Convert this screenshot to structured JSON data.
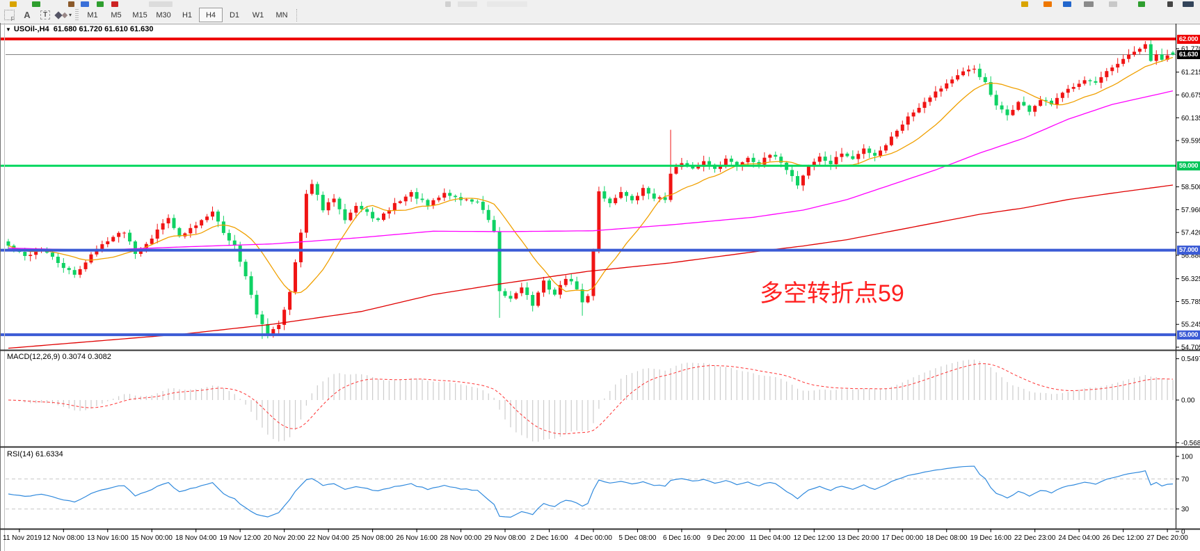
{
  "window": {
    "app": "MetaTrader chart"
  },
  "toolbar": {
    "tools": [
      {
        "name": "crosshair",
        "label": "F"
      },
      {
        "name": "text-label",
        "label": "A"
      },
      {
        "name": "text-box",
        "label": "T"
      },
      {
        "name": "shapes-dropdown",
        "label": "▾"
      }
    ],
    "timeframes": {
      "items": [
        "M1",
        "M5",
        "M15",
        "M30",
        "H1",
        "H4",
        "D1",
        "W1",
        "MN"
      ],
      "active": "H4"
    },
    "top_fragments": [
      [
        14,
        10,
        "#d9a400"
      ],
      [
        46,
        12,
        "#2e9e2e"
      ],
      [
        98,
        9,
        "#8b5a2b"
      ],
      [
        116,
        12,
        "#3a6fd8"
      ],
      [
        139,
        10,
        "#2e9e2e"
      ],
      [
        160,
        10,
        "#cc2222"
      ],
      [
        214,
        34,
        "#dcdcdc"
      ],
      [
        640,
        8,
        "#d0d0d0"
      ],
      [
        658,
        28,
        "#e2e2e2"
      ],
      [
        700,
        58,
        "#e8e8e8"
      ],
      [
        1468,
        10,
        "#d9a400"
      ],
      [
        1500,
        12,
        "#ee7700"
      ],
      [
        1528,
        12,
        "#2266cc"
      ],
      [
        1558,
        14,
        "#8a8a8a"
      ],
      [
        1594,
        12,
        "#c8c8c8"
      ],
      [
        1636,
        10,
        "#2e9e2e"
      ],
      [
        1678,
        8,
        "#444444"
      ],
      [
        1700,
        16,
        "#33445a"
      ]
    ]
  },
  "chart": {
    "dropdown_glyph": "▼",
    "symbol": "USOil-,H4",
    "ohlc": "61.680 61.720 61.610 61.630",
    "annotation": {
      "text": "多空转折点59",
      "color": "#ff2020"
    }
  },
  "macd_panel": {
    "label": "MACD(12,26,9)",
    "values": "0.3074 0.3082"
  },
  "rsi_panel": {
    "label": "RSI(14)",
    "value": "61.6334"
  },
  "chart_data": {
    "type": "candlestick",
    "symbol": "USOil-",
    "timeframe": "H4",
    "num_candles": 212,
    "candles_per_label": 8,
    "visible_price_range": [
      54.64,
      62.38
    ],
    "up_color": "#f01414",
    "down_color": "#0fd264",
    "current_price": 61.63,
    "current_price_label": "61.630",
    "current_price_line_color": "#808080",
    "last_candle_ohlc": [
      61.68,
      61.72,
      61.61,
      61.63
    ],
    "close_anchors": [
      [
        0,
        57.1
      ],
      [
        3,
        56.85
      ],
      [
        6,
        57.05
      ],
      [
        9,
        56.7
      ],
      [
        12,
        56.4
      ],
      [
        15,
        56.9
      ],
      [
        18,
        57.25
      ],
      [
        21,
        57.45
      ],
      [
        23,
        56.95
      ],
      [
        26,
        57.3
      ],
      [
        29,
        57.8
      ],
      [
        31,
        57.3
      ],
      [
        34,
        57.6
      ],
      [
        37,
        57.95
      ],
      [
        39,
        57.4
      ],
      [
        41,
        57.1
      ],
      [
        43,
        56.4
      ],
      [
        45,
        55.45
      ],
      [
        47,
        55.05
      ],
      [
        49,
        55.25
      ],
      [
        51,
        56.0
      ],
      [
        53,
        57.4
      ],
      [
        54,
        58.3
      ],
      [
        55,
        58.6
      ],
      [
        57,
        57.95
      ],
      [
        59,
        58.25
      ],
      [
        61,
        57.75
      ],
      [
        63,
        58.05
      ],
      [
        67,
        57.7
      ],
      [
        70,
        58.1
      ],
      [
        73,
        58.35
      ],
      [
        76,
        58.05
      ],
      [
        79,
        58.35
      ],
      [
        82,
        58.2
      ],
      [
        85,
        58.15
      ],
      [
        87,
        57.7
      ],
      [
        88,
        57.4
      ],
      [
        89,
        56.0
      ],
      [
        91,
        55.85
      ],
      [
        93,
        56.15
      ],
      [
        95,
        55.7
      ],
      [
        97,
        56.25
      ],
      [
        99,
        55.95
      ],
      [
        101,
        56.35
      ],
      [
        103,
        56.1
      ],
      [
        104,
        55.75
      ],
      [
        105,
        55.9
      ],
      [
        106,
        57.0
      ],
      [
        107,
        58.4
      ],
      [
        109,
        58.1
      ],
      [
        111,
        58.4
      ],
      [
        113,
        58.15
      ],
      [
        115,
        58.45
      ],
      [
        117,
        58.25
      ],
      [
        119,
        58.2
      ],
      [
        120,
        58.85
      ],
      [
        122,
        59.05
      ],
      [
        124,
        58.9
      ],
      [
        126,
        59.1
      ],
      [
        128,
        58.95
      ],
      [
        130,
        59.15
      ],
      [
        132,
        59.0
      ],
      [
        134,
        59.2
      ],
      [
        136,
        59.05
      ],
      [
        138,
        59.25
      ],
      [
        140,
        59.1
      ],
      [
        142,
        58.75
      ],
      [
        143,
        58.55
      ],
      [
        145,
        59.0
      ],
      [
        147,
        59.2
      ],
      [
        149,
        59.05
      ],
      [
        151,
        59.3
      ],
      [
        153,
        59.15
      ],
      [
        155,
        59.4
      ],
      [
        157,
        59.25
      ],
      [
        159,
        59.5
      ],
      [
        161,
        59.85
      ],
      [
        163,
        60.15
      ],
      [
        165,
        60.4
      ],
      [
        167,
        60.65
      ],
      [
        169,
        60.85
      ],
      [
        171,
        61.05
      ],
      [
        173,
        61.2
      ],
      [
        175,
        61.3
      ],
      [
        177,
        60.95
      ],
      [
        179,
        60.4
      ],
      [
        181,
        60.2
      ],
      [
        183,
        60.5
      ],
      [
        185,
        60.3
      ],
      [
        187,
        60.55
      ],
      [
        189,
        60.45
      ],
      [
        191,
        60.7
      ],
      [
        193,
        60.9
      ],
      [
        195,
        61.05
      ],
      [
        197,
        60.95
      ],
      [
        199,
        61.2
      ],
      [
        201,
        61.4
      ],
      [
        203,
        61.6
      ],
      [
        205,
        61.78
      ],
      [
        206,
        61.88
      ],
      [
        207,
        61.45
      ],
      [
        208,
        61.62
      ],
      [
        209,
        61.52
      ],
      [
        211,
        61.63
      ]
    ],
    "spikes": [
      {
        "i": 46,
        "low": 54.9
      },
      {
        "i": 89,
        "low": 55.4
      },
      {
        "i": 104,
        "low": 55.45
      },
      {
        "i": 120,
        "high": 59.85
      },
      {
        "i": 143,
        "low": 58.45
      },
      {
        "i": 175,
        "high": 61.38
      },
      {
        "i": 206,
        "high": 61.95
      }
    ],
    "hlines": [
      {
        "price": 62.0,
        "label": "62.000",
        "color": "#ee0000",
        "width": 4
      },
      {
        "price": 59.0,
        "label": "59.000",
        "color": "#00d75e",
        "width": 3
      },
      {
        "price": 57.0,
        "label": "57.000",
        "color": "#3b5bd5",
        "width": 4
      },
      {
        "price": 55.0,
        "label": "55.000",
        "color": "#3b5bd5",
        "width": 4
      }
    ],
    "price_ticks": [
      "61.770",
      "61.215",
      "60.675",
      "60.135",
      "59.595",
      "58.500",
      "57.960",
      "57.420",
      "56.880",
      "56.325",
      "55.785",
      "55.245",
      "54.705"
    ],
    "ma": {
      "orange": {
        "type": "sma",
        "period": 13,
        "color": "#f0a000"
      },
      "magenta": {
        "color": "#ff00ff",
        "anchors": [
          [
            0,
            57.05
          ],
          [
            16,
            57.0
          ],
          [
            32,
            57.08
          ],
          [
            48,
            57.15
          ],
          [
            64,
            57.3
          ],
          [
            77,
            57.45
          ],
          [
            90,
            57.44
          ],
          [
            106,
            57.46
          ],
          [
            120,
            57.6
          ],
          [
            135,
            57.78
          ],
          [
            144,
            57.95
          ],
          [
            152,
            58.2
          ],
          [
            160,
            58.55
          ],
          [
            168,
            58.9
          ],
          [
            176,
            59.3
          ],
          [
            184,
            59.65
          ],
          [
            192,
            60.1
          ],
          [
            200,
            60.45
          ],
          [
            212,
            60.8
          ]
        ]
      },
      "red": {
        "color": "#e00000",
        "anchors": [
          [
            0,
            54.68
          ],
          [
            16,
            54.85
          ],
          [
            32,
            55.02
          ],
          [
            48,
            55.25
          ],
          [
            64,
            55.55
          ],
          [
            77,
            55.95
          ],
          [
            89,
            56.2
          ],
          [
            105,
            56.5
          ],
          [
            120,
            56.7
          ],
          [
            135,
            56.96
          ],
          [
            144,
            57.1
          ],
          [
            152,
            57.25
          ],
          [
            160,
            57.45
          ],
          [
            168,
            57.65
          ],
          [
            176,
            57.85
          ],
          [
            184,
            58.0
          ],
          [
            192,
            58.2
          ],
          [
            200,
            58.35
          ],
          [
            212,
            58.56
          ]
        ]
      }
    },
    "macd": {
      "params": [
        12,
        26,
        9
      ],
      "hist_color": "#cccccc",
      "signal_color": "#ff3333",
      "axis_labels": [
        "0.5497",
        "0.00",
        "-0.5685"
      ],
      "axis_values": [
        0.5497,
        0.0,
        -0.5685
      ]
    },
    "rsi": {
      "period": 14,
      "color": "#2f89dd",
      "levels": [
        70,
        30
      ],
      "level_color": "#c8c8c8",
      "axis_labels": [
        "100",
        "70",
        "30",
        "0"
      ],
      "axis_values": [
        100,
        70,
        30,
        0
      ],
      "last_value": 61.6334
    },
    "time_labels": [
      "11 Nov 2019",
      "12 Nov 08:00",
      "13 Nov 16:00",
      "15 Nov 00:00",
      "18 Nov 04:00",
      "19 Nov 12:00",
      "20 Nov 20:00",
      "22 Nov 04:00",
      "25 Nov 08:00",
      "26 Nov 16:00",
      "28 Nov 00:00",
      "29 Nov 08:00",
      "2 Dec 16:00",
      "4 Dec 00:00",
      "5 Dec 08:00",
      "6 Dec 16:00",
      "9 Dec 20:00",
      "11 Dec 04:00",
      "12 Dec 12:00",
      "13 Dec 20:00",
      "17 Dec 00:00",
      "18 Dec 08:00",
      "19 Dec 16:00",
      "22 Dec 23:00",
      "24 Dec 04:00",
      "26 Dec 12:00",
      "27 Dec 20:00"
    ]
  }
}
